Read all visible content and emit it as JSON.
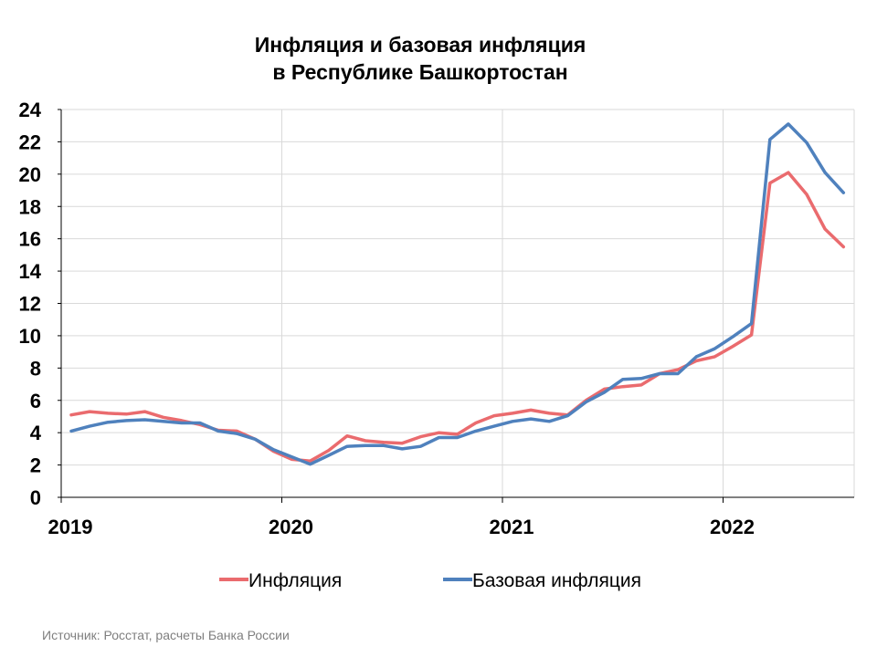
{
  "title": {
    "line1": "Инфляция и базовая инфляция",
    "line2": "в  Республике Башкортостан"
  },
  "source": "Источник: Росстат, расчеты Банка России",
  "chart_data": {
    "type": "line",
    "title": "Инфляция и базовая инфляция в Республике Башкортостан",
    "xlabel": "",
    "ylabel": "",
    "ylim": [
      0,
      24
    ],
    "yticks": [
      0,
      2,
      4,
      6,
      8,
      10,
      12,
      14,
      16,
      18,
      20,
      22,
      24
    ],
    "xticks": [
      "2019",
      "2020",
      "2021",
      "2022"
    ],
    "xlim": [
      "2019-01",
      "2022-07"
    ],
    "grid": true,
    "legend_position": "bottom",
    "x": [
      "2019-01",
      "2019-02",
      "2019-03",
      "2019-04",
      "2019-05",
      "2019-06",
      "2019-07",
      "2019-08",
      "2019-09",
      "2019-10",
      "2019-11",
      "2019-12",
      "2020-01",
      "2020-02",
      "2020-03",
      "2020-04",
      "2020-05",
      "2020-06",
      "2020-07",
      "2020-08",
      "2020-09",
      "2020-10",
      "2020-11",
      "2020-12",
      "2021-01",
      "2021-02",
      "2021-03",
      "2021-04",
      "2021-05",
      "2021-06",
      "2021-07",
      "2021-08",
      "2021-09",
      "2021-10",
      "2021-11",
      "2021-12",
      "2022-01",
      "2022-02",
      "2022-03",
      "2022-04",
      "2022-05",
      "2022-06",
      "2022-07"
    ],
    "series": [
      {
        "name": "Инфляция",
        "color": "#ea6b6e",
        "values": [
          5.1,
          5.3,
          5.2,
          5.15,
          5.3,
          4.95,
          4.75,
          4.5,
          4.15,
          4.1,
          3.6,
          2.85,
          2.35,
          2.25,
          2.9,
          3.8,
          3.5,
          3.4,
          3.35,
          3.75,
          4.0,
          3.9,
          4.6,
          5.05,
          5.2,
          5.4,
          5.2,
          5.1,
          6.0,
          6.7,
          6.85,
          6.95,
          7.65,
          7.9,
          8.45,
          8.7,
          9.35,
          10.05,
          19.45,
          20.1,
          18.75,
          16.6,
          15.5
        ]
      },
      {
        "name": "Базовая инфляция",
        "color": "#4f81bd",
        "values": [
          4.1,
          4.4,
          4.65,
          4.75,
          4.8,
          4.7,
          4.6,
          4.6,
          4.1,
          3.95,
          3.6,
          2.95,
          2.5,
          2.05,
          2.6,
          3.15,
          3.2,
          3.2,
          3.0,
          3.15,
          3.7,
          3.7,
          4.1,
          4.4,
          4.7,
          4.85,
          4.7,
          5.05,
          5.9,
          6.5,
          7.3,
          7.35,
          7.65,
          7.65,
          8.7,
          9.2,
          9.95,
          10.75,
          22.15,
          23.1,
          21.95,
          20.1,
          18.85
        ]
      }
    ]
  }
}
